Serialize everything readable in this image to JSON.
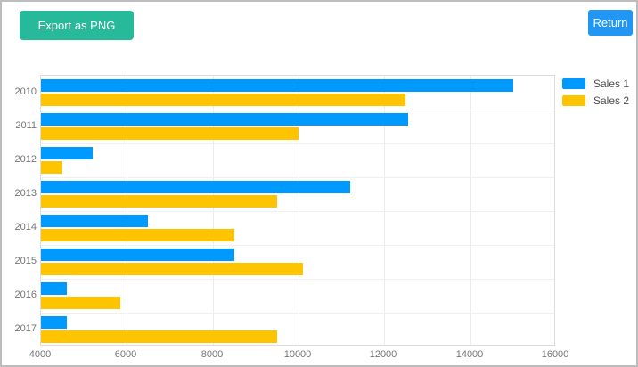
{
  "toolbar": {
    "export_label": "Export as PNG",
    "return_label": "Return"
  },
  "colors": {
    "export_button_bg": "#26b99a",
    "return_button_bg": "#2196f3",
    "series1": "#009aff",
    "series2": "#ffc400",
    "axis_text": "#757575",
    "gridline": "#ececec",
    "plot_border": "#dcdcdc"
  },
  "chart_data": {
    "type": "bar",
    "orientation": "horizontal",
    "title": "",
    "xlabel": "",
    "ylabel": "",
    "categories": [
      "2010",
      "2011",
      "2012",
      "2013",
      "2014",
      "2015",
      "2016",
      "2017"
    ],
    "series": [
      {
        "name": "Sales 1",
        "color": "#009aff",
        "values": [
          15000,
          12550,
          5200,
          11200,
          6500,
          8500,
          4600,
          4600
        ]
      },
      {
        "name": "Sales 2",
        "color": "#ffc400",
        "values": [
          12500,
          10000,
          4500,
          9500,
          8500,
          10100,
          5850,
          9500
        ]
      }
    ],
    "xlim": [
      4000,
      16000
    ],
    "x_ticks": [
      4000,
      6000,
      8000,
      10000,
      12000,
      14000,
      16000
    ],
    "grid": true,
    "legend_position": "right"
  }
}
